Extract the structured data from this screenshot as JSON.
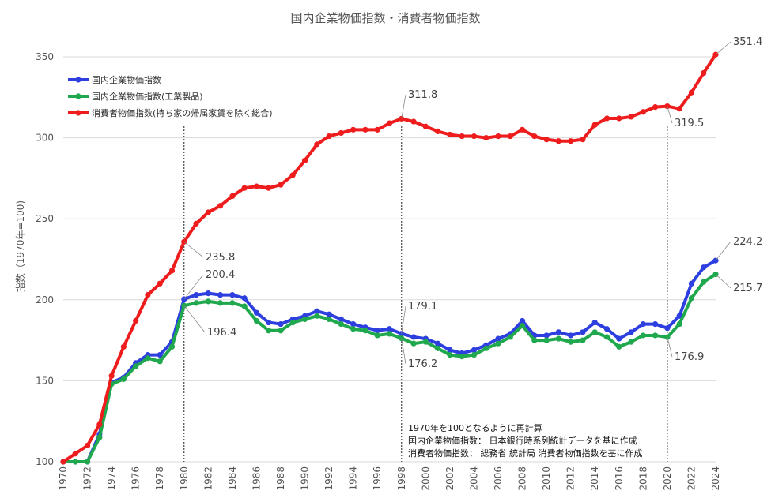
{
  "chart_data": {
    "type": "line",
    "title": "国内企業物価指数・消費者物価指数",
    "ylabel": "指数（1970年=100)",
    "xlabel": "",
    "xlim": [
      1970,
      2024
    ],
    "ylim": [
      100,
      350
    ],
    "y_ticks": [
      100,
      150,
      200,
      250,
      300,
      350
    ],
    "x_ticks": [
      1970,
      1972,
      1974,
      1976,
      1978,
      1980,
      1982,
      1984,
      1986,
      1988,
      1990,
      1992,
      1994,
      1996,
      1998,
      2000,
      2002,
      2004,
      2006,
      2008,
      2010,
      2012,
      2014,
      2016,
      2018,
      2020,
      2022,
      2024
    ],
    "grid": "horizontal",
    "legend_position": "top-left",
    "vertical_markers": [
      1980,
      1998,
      2020
    ],
    "x": [
      1970,
      1971,
      1972,
      1973,
      1974,
      1975,
      1976,
      1977,
      1978,
      1979,
      1980,
      1981,
      1982,
      1983,
      1984,
      1985,
      1986,
      1987,
      1988,
      1989,
      1990,
      1991,
      1992,
      1993,
      1994,
      1995,
      1996,
      1997,
      1998,
      1999,
      2000,
      2001,
      2002,
      2003,
      2004,
      2005,
      2006,
      2007,
      2008,
      2009,
      2010,
      2011,
      2012,
      2013,
      2014,
      2015,
      2016,
      2017,
      2018,
      2019,
      2020,
      2021,
      2022,
      2023,
      2024
    ],
    "series": [
      {
        "name": "国内企業物価指数",
        "color": "#2e3fe0",
        "values": [
          100,
          100,
          100,
          117,
          149,
          152,
          161,
          166,
          166,
          174,
          200.4,
          203,
          204,
          203,
          203,
          201,
          192,
          186,
          185,
          188,
          190,
          193,
          191,
          188,
          185,
          183,
          181,
          182,
          179.1,
          177,
          176,
          173,
          169,
          167,
          169,
          172,
          176,
          179,
          187,
          178,
          178,
          180,
          178,
          180,
          186,
          182,
          176,
          180,
          185,
          185,
          182.5,
          190,
          210,
          220,
          224.2
        ]
      },
      {
        "name": "国内企業物価指数(工業製品)",
        "color": "#1fa84e",
        "values": [
          100,
          100,
          100,
          115,
          148,
          151,
          159,
          164,
          162,
          171,
          196.4,
          198,
          199,
          198,
          198,
          196,
          187,
          181,
          181,
          186,
          188,
          190,
          188,
          185,
          182,
          181,
          178,
          179,
          176.2,
          173,
          174,
          170,
          166,
          165,
          166,
          170,
          173,
          177,
          184,
          175,
          175,
          176,
          174,
          175,
          180,
          177,
          171,
          174,
          178,
          178,
          176.9,
          185,
          201,
          211,
          215.7
        ]
      },
      {
        "name": "消費者物価指数(持ち家の帰属家賃を除く総合)",
        "color": "#ee1c1c",
        "values": [
          100,
          105,
          110,
          123,
          153,
          171,
          187,
          203,
          210,
          218,
          235.8,
          247,
          254,
          258,
          264,
          269,
          270,
          269,
          271,
          277,
          286,
          296,
          301,
          303,
          305,
          305,
          305,
          309,
          311.8,
          310,
          307,
          304,
          302,
          301,
          301,
          300,
          301,
          301,
          305,
          301,
          299,
          298,
          298,
          299,
          308,
          312,
          312,
          313,
          316,
          319,
          319.5,
          318,
          328,
          340,
          351.4
        ]
      }
    ],
    "annotations": [
      {
        "series": 2,
        "x": 1980,
        "label": "235.8"
      },
      {
        "series": 0,
        "x": 1980,
        "label": "200.4"
      },
      {
        "series": 1,
        "x": 1980,
        "label": "196.4"
      },
      {
        "series": 2,
        "x": 1998,
        "label": "311.8"
      },
      {
        "series": 0,
        "x": 1998,
        "label": "179.1"
      },
      {
        "series": 1,
        "x": 1998,
        "label": "176.2"
      },
      {
        "series": 2,
        "x": 2020,
        "label": "319.5"
      },
      {
        "series": 1,
        "x": 2020,
        "label": "176.9"
      },
      {
        "series": 2,
        "x": 2024,
        "label": "351.4"
      },
      {
        "series": 0,
        "x": 2024,
        "label": "224.2"
      },
      {
        "series": 1,
        "x": 2024,
        "label": "215.7"
      }
    ],
    "notes": [
      "1970年を100となるように再計算",
      "国内企業物価指数： 日本銀行時系列統計データを基に作成",
      "消費者物価指数： 総務省 統計局 消費者物価指数を基に作成"
    ]
  }
}
